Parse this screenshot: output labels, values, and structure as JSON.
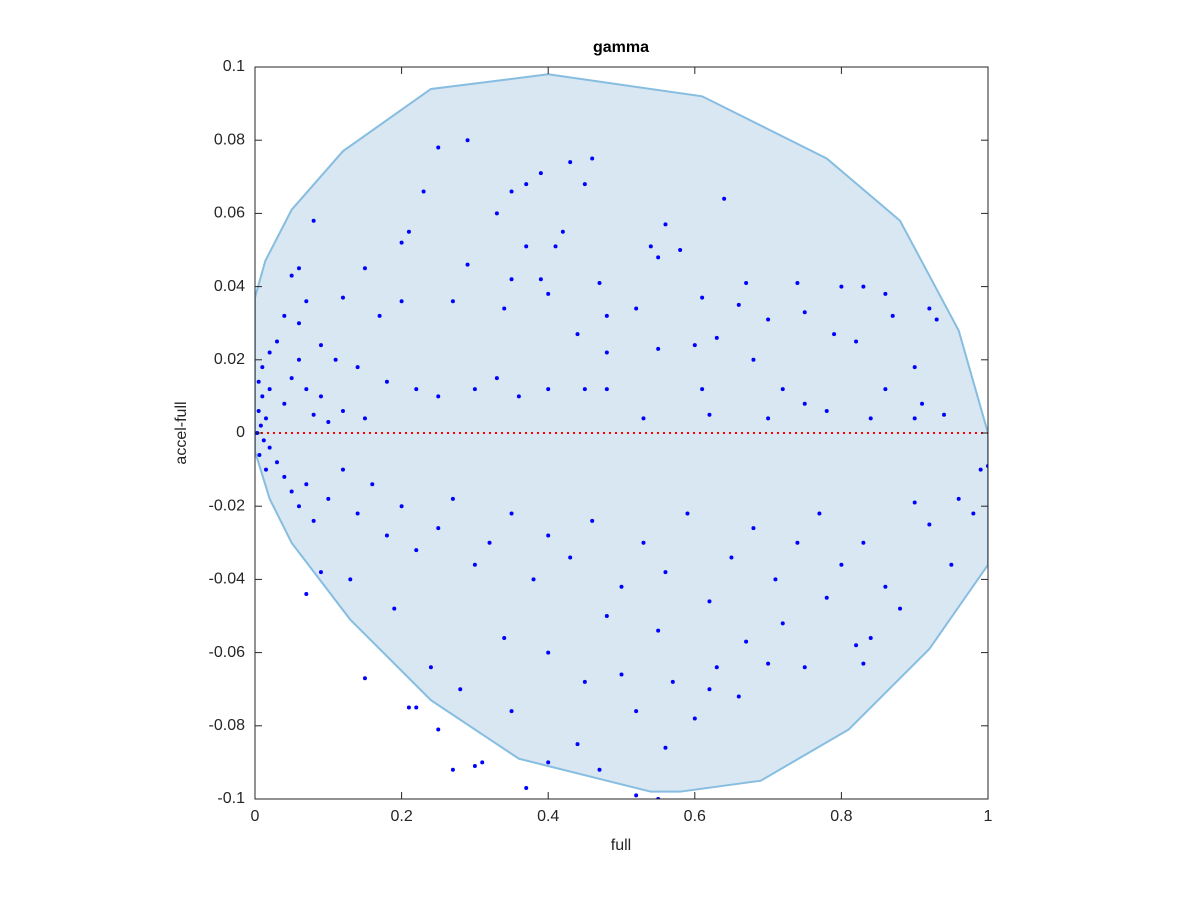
{
  "chart_data": {
    "type": "scatter",
    "title": "gamma",
    "xlabel": "full",
    "ylabel": "accel-full",
    "xlim": [
      0,
      1
    ],
    "ylim": [
      -0.1,
      0.1
    ],
    "xticks": [
      0,
      0.2,
      0.4,
      0.6,
      0.8,
      1
    ],
    "yticks": [
      -0.1,
      -0.08,
      -0.06,
      -0.04,
      -0.02,
      0,
      0.02,
      0.04,
      0.06,
      0.08,
      0.1
    ],
    "color": "#0000ff",
    "region": {
      "fill": "#d8e7f2",
      "color": "#86bde0",
      "x": [
        0,
        0,
        0.014,
        0.05,
        0.12,
        0.24,
        0.4,
        0.61,
        0.78,
        0.88,
        0.96,
        1,
        1,
        0.92,
        0.81,
        0.69,
        0.58,
        0.54,
        0.36,
        0.24,
        0.13,
        0.05,
        0.02
      ],
      "y": [
        -0.005,
        0.037,
        0.047,
        0.061,
        0.077,
        0.094,
        0.098,
        0.092,
        0.075,
        0.058,
        0.028,
        0,
        -0.036,
        -0.059,
        -0.081,
        -0.095,
        -0.098,
        -0.098,
        -0.089,
        -0.073,
        -0.051,
        -0.03,
        -0.018
      ]
    },
    "reference_line": {
      "y": 0,
      "color": "#ff0000"
    },
    "x": [
      0.25,
      0.29,
      0.43,
      0.46,
      0.45,
      0.37,
      0.35,
      0.39,
      0.23,
      0.33,
      0.08,
      0.64,
      0.56,
      0.54,
      0.58,
      0.55,
      0.42,
      0.41,
      0.37,
      0.29,
      0.21,
      0.2,
      0.06,
      0.05,
      0.15,
      0.35,
      0.39,
      0.4,
      0.47,
      0.61,
      0.67,
      0.74,
      0.8,
      0.83,
      0.86,
      0.92,
      0.93,
      0.87,
      0.75,
      0.7,
      0.66,
      0.63,
      0.6,
      0.52,
      0.48,
      0.34,
      0.27,
      0.2,
      0.17,
      0.12,
      0.07,
      0.44,
      0.48,
      0.55,
      0.68,
      0.79,
      0.82,
      0.9,
      0.48,
      0.72,
      0.61,
      0.75,
      0.78,
      0.86,
      0.91,
      0.94,
      0.33,
      0.36,
      0.4,
      0.45,
      0.53,
      0.62,
      0.7,
      0.84,
      0.9,
      0.3,
      0.25,
      0.22,
      0.18,
      0.14,
      0.11,
      0.09,
      0.06,
      0.04,
      0.03,
      0.02,
      0.01,
      0.005,
      0.02,
      0.01,
      0.005,
      0.015,
      0.008,
      0.003,
      0.012,
      0.02,
      0.006,
      0.03,
      0.015,
      0.04,
      0.05,
      0.06,
      0.07,
      0.08,
      0.09,
      0.1,
      0.12,
      0.15,
      0.04,
      0.05,
      0.06,
      0.07,
      0.08,
      0.1,
      0.12,
      0.14,
      0.16,
      0.18,
      0.2,
      0.22,
      0.25,
      0.27,
      0.3,
      0.32,
      0.35,
      0.38,
      0.4,
      0.43,
      0.46,
      0.5,
      0.53,
      0.56,
      0.59,
      0.62,
      0.65,
      0.68,
      0.71,
      0.74,
      0.77,
      0.8,
      0.83,
      0.86,
      0.9,
      0.92,
      0.96,
      0.99,
      1.0,
      0.98,
      0.95,
      0.88,
      0.82,
      0.75,
      0.7,
      0.63,
      0.57,
      0.5,
      0.45,
      0.4,
      0.34,
      0.28,
      0.24,
      0.19,
      0.13,
      0.09,
      0.07,
      0.15,
      0.21,
      0.22,
      0.25,
      0.27,
      0.3,
      0.31,
      0.37,
      0.4,
      0.44,
      0.47,
      0.52,
      0.55,
      0.56,
      0.62,
      0.66,
      0.52,
      0.6,
      0.35,
      0.48,
      0.55,
      0.72,
      0.78,
      0.84,
      0.83,
      0.67
    ],
    "values": [
      0.078,
      0.08,
      0.074,
      0.075,
      0.068,
      0.068,
      0.066,
      0.071,
      0.066,
      0.06,
      0.058,
      0.064,
      0.057,
      0.051,
      0.05,
      0.048,
      0.055,
      0.051,
      0.051,
      0.046,
      0.055,
      0.052,
      0.045,
      0.043,
      0.045,
      0.042,
      0.042,
      0.038,
      0.041,
      0.037,
      0.041,
      0.041,
      0.04,
      0.04,
      0.038,
      0.034,
      0.031,
      0.032,
      0.033,
      0.031,
      0.035,
      0.026,
      0.024,
      0.034,
      0.032,
      0.034,
      0.036,
      0.036,
      0.032,
      0.037,
      0.036,
      0.027,
      0.022,
      0.023,
      0.02,
      0.027,
      0.025,
      0.018,
      0.012,
      0.012,
      0.012,
      0.008,
      0.006,
      0.012,
      0.008,
      0.005,
      0.015,
      0.01,
      0.012,
      0.012,
      0.004,
      0.005,
      0.004,
      0.004,
      0.004,
      0.012,
      0.01,
      0.012,
      0.014,
      0.018,
      0.02,
      0.024,
      0.03,
      0.032,
      0.025,
      0.022,
      0.018,
      0.014,
      0.012,
      0.01,
      0.006,
      0.004,
      0.002,
      0.0,
      -0.002,
      -0.004,
      -0.006,
      -0.008,
      -0.01,
      0.008,
      0.015,
      0.02,
      0.012,
      0.005,
      0.01,
      0.003,
      0.006,
      0.004,
      -0.012,
      -0.016,
      -0.02,
      -0.014,
      -0.024,
      -0.018,
      -0.01,
      -0.022,
      -0.014,
      -0.028,
      -0.02,
      -0.032,
      -0.026,
      -0.018,
      -0.036,
      -0.03,
      -0.022,
      -0.04,
      -0.028,
      -0.034,
      -0.024,
      -0.042,
      -0.03,
      -0.038,
      -0.022,
      -0.046,
      -0.034,
      -0.026,
      -0.04,
      -0.03,
      -0.022,
      -0.036,
      -0.03,
      -0.042,
      -0.019,
      -0.025,
      -0.018,
      -0.01,
      -0.009,
      -0.022,
      -0.036,
      -0.048,
      -0.058,
      -0.064,
      -0.063,
      -0.064,
      -0.068,
      -0.066,
      -0.068,
      -0.06,
      -0.056,
      -0.07,
      -0.064,
      -0.048,
      -0.04,
      -0.038,
      -0.044,
      -0.067,
      -0.075,
      -0.075,
      -0.081,
      -0.092,
      -0.091,
      -0.09,
      -0.097,
      -0.09,
      -0.085,
      -0.092,
      -0.099,
      -0.1,
      -0.086,
      -0.07,
      -0.072,
      -0.076,
      -0.078,
      -0.076,
      -0.05,
      -0.054,
      -0.052,
      -0.045,
      -0.056,
      -0.063,
      -0.057
    ]
  }
}
